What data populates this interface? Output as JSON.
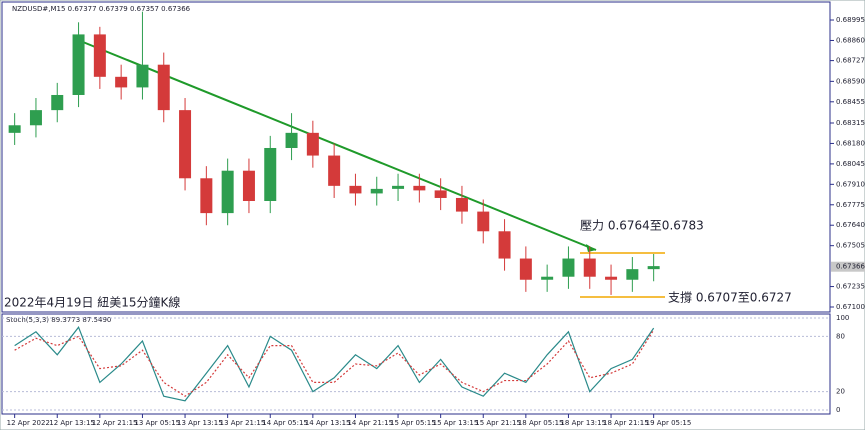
{
  "chart_data": [
    {
      "type": "candlestick",
      "title": "NZDUSD#,M15  0.67377 0.67379 0.67357 0.67366",
      "annotations": [
        "壓力 0.6764至0.6783",
        "支撐 0.6707至0.6727",
        "2022年4月19日 紐美15分鐘K線"
      ],
      "categories": [
        "12 Apr 2022",
        null,
        "12 Apr 13:15",
        null,
        "12 Apr 21:15",
        null,
        "13 Apr 05:15",
        null,
        "13 Apr 13:15",
        null,
        "13 Apr 21:15",
        null,
        "14 Apr 05:15",
        null,
        "14 Apr 13:15",
        null,
        "14 Apr 21:15",
        null,
        "15 Apr 05:15",
        null,
        "15 Apr 13:15",
        null,
        "15 Apr 21:15",
        null,
        "18 Apr 05:15",
        null,
        "18 Apr 13:15",
        null,
        "18 Apr 21:15",
        null,
        "19 Apr 05:15"
      ],
      "open": [
        0.6825,
        0.683,
        0.684,
        0.685,
        0.689,
        0.6862,
        0.6855,
        0.687,
        0.684,
        0.6795,
        0.6772,
        0.68,
        0.678,
        0.6815,
        0.6825,
        0.681,
        0.679,
        0.6785,
        0.6788,
        0.679,
        0.6787,
        0.6782,
        0.6773,
        0.676,
        0.6742,
        0.6728,
        0.673,
        0.6742,
        0.673,
        0.6728,
        0.6735
      ],
      "high": [
        0.6838,
        0.6848,
        0.6858,
        0.6898,
        0.6895,
        0.687,
        0.6905,
        0.6878,
        0.6848,
        0.6803,
        0.6808,
        0.6808,
        0.6823,
        0.6838,
        0.6833,
        0.6818,
        0.6798,
        0.6796,
        0.6798,
        0.6798,
        0.6795,
        0.679,
        0.6781,
        0.6768,
        0.675,
        0.6738,
        0.675,
        0.675,
        0.6738,
        0.6743,
        0.6745
      ],
      "low": [
        0.6817,
        0.6822,
        0.6832,
        0.6842,
        0.6854,
        0.6847,
        0.6847,
        0.6832,
        0.6787,
        0.6764,
        0.6764,
        0.6772,
        0.6772,
        0.6807,
        0.6802,
        0.6782,
        0.6777,
        0.6777,
        0.678,
        0.6779,
        0.6774,
        0.6765,
        0.6752,
        0.6734,
        0.672,
        0.672,
        0.6722,
        0.6722,
        0.6718,
        0.672,
        0.6727
      ],
      "close": [
        0.683,
        0.684,
        0.685,
        0.689,
        0.6862,
        0.6855,
        0.687,
        0.684,
        0.6795,
        0.6772,
        0.68,
        0.678,
        0.6815,
        0.6825,
        0.681,
        0.679,
        0.6785,
        0.6788,
        0.679,
        0.6787,
        0.6782,
        0.6773,
        0.676,
        0.6742,
        0.6728,
        0.673,
        0.6742,
        0.673,
        0.6728,
        0.6735,
        0.6737
      ],
      "up_color": "#2e9e4f",
      "down_color": "#d43a3a",
      "current_price": 0.67366,
      "ylim": [
        0.67067,
        0.69114
      ],
      "yticks": [
        0.68995,
        {
          "value": 0.6886,
          "label": "0.68860"
        },
        0.68727,
        {
          "value": 0.6859,
          "label": "0.68590"
        },
        0.68455,
        0.68315,
        {
          "value": 0.6818,
          "label": "0.68180"
        },
        0.68045,
        {
          "value": 0.6791,
          "label": "0.67910"
        },
        0.67775,
        {
          "value": 0.6764,
          "label": "0.67640"
        },
        0.67505,
        0.67235,
        {
          "value": 0.671,
          "label": "0.67100"
        }
      ]
    },
    {
      "type": "line",
      "title": "Stoch(5,3,3) 89.3773 87.5490",
      "series": [
        {
          "color": "#2a8a8a",
          "values": [
            70,
            85,
            60,
            90,
            30,
            50,
            75,
            15,
            10,
            40,
            70,
            25,
            80,
            65,
            20,
            35,
            60,
            45,
            70,
            30,
            55,
            25,
            15,
            40,
            30,
            60,
            85,
            20,
            45,
            55,
            89
          ]
        },
        {
          "color": "#d43a3a",
          "values": [
            65,
            78,
            70,
            80,
            45,
            48,
            65,
            30,
            15,
            30,
            60,
            35,
            70,
            70,
            30,
            30,
            50,
            48,
            62,
            38,
            50,
            30,
            20,
            32,
            32,
            50,
            75,
            35,
            40,
            50,
            87
          ]
        }
      ],
      "ylim": [
        0,
        100
      ],
      "yticks": [
        100,
        80,
        20,
        0
      ]
    }
  ]
}
